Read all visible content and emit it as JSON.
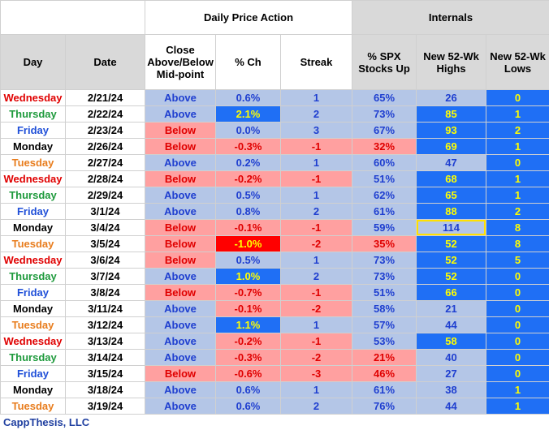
{
  "header": {
    "groups": [
      "Daily Price Action",
      "Internals"
    ],
    "columns": [
      "Day",
      "Date",
      "Close Above/Below Mid-point",
      "% Ch",
      "Streak",
      "% SPX Stocks Up",
      "New 52-Wk Highs",
      "New 52-Wk Lows"
    ]
  },
  "table": {
    "rows": [
      [
        "Wednesday",
        "2/21/24",
        "Above",
        "0.6%",
        "1",
        "65%",
        "26",
        "0"
      ],
      [
        "Thursday",
        "2/22/24",
        "Above",
        "2.1%",
        "2",
        "73%",
        "85",
        "1"
      ],
      [
        "Friday",
        "2/23/24",
        "Below",
        "0.0%",
        "3",
        "67%",
        "93",
        "2"
      ],
      [
        "Monday",
        "2/26/24",
        "Below",
        "-0.3%",
        "-1",
        "32%",
        "69",
        "1"
      ],
      [
        "Tuesday",
        "2/27/24",
        "Above",
        "0.2%",
        "1",
        "60%",
        "47",
        "0"
      ],
      [
        "Wednesday",
        "2/28/24",
        "Below",
        "-0.2%",
        "-1",
        "51%",
        "68",
        "1"
      ],
      [
        "Thursday",
        "2/29/24",
        "Above",
        "0.5%",
        "1",
        "62%",
        "65",
        "1"
      ],
      [
        "Friday",
        "3/1/24",
        "Above",
        "0.8%",
        "2",
        "61%",
        "88",
        "2"
      ],
      [
        "Monday",
        "3/4/24",
        "Below",
        "-0.1%",
        "-1",
        "59%",
        "114",
        "8"
      ],
      [
        "Tuesday",
        "3/5/24",
        "Below",
        "-1.0%",
        "-2",
        "35%",
        "52",
        "8"
      ],
      [
        "Wednesday",
        "3/6/24",
        "Below",
        "0.5%",
        "1",
        "73%",
        "52",
        "5"
      ],
      [
        "Thursday",
        "3/7/24",
        "Above",
        "1.0%",
        "2",
        "73%",
        "52",
        "0"
      ],
      [
        "Friday",
        "3/8/24",
        "Below",
        "-0.7%",
        "-1",
        "51%",
        "66",
        "0"
      ],
      [
        "Monday",
        "3/11/24",
        "Above",
        "-0.1%",
        "-2",
        "58%",
        "21",
        "0"
      ],
      [
        "Tuesday",
        "3/12/24",
        "Above",
        "1.1%",
        "1",
        "57%",
        "44",
        "0"
      ],
      [
        "Wednesday",
        "3/13/24",
        "Above",
        "-0.2%",
        "-1",
        "53%",
        "58",
        "0"
      ],
      [
        "Thursday",
        "3/14/24",
        "Above",
        "-0.3%",
        "-2",
        "21%",
        "40",
        "0"
      ],
      [
        "Friday",
        "3/15/24",
        "Below",
        "-0.6%",
        "-3",
        "46%",
        "27",
        "0"
      ],
      [
        "Monday",
        "3/18/24",
        "Above",
        "0.6%",
        "1",
        "61%",
        "38",
        "1"
      ],
      [
        "Tuesday",
        "3/19/24",
        "Above",
        "0.6%",
        "2",
        "76%",
        "44",
        "1"
      ]
    ],
    "day_colors": {
      "Monday": "#000000",
      "Tuesday": "#e87d1e",
      "Wednesday": "#e00000",
      "Thursday": "#1e9a3c",
      "Friday": "#1f4fd8"
    },
    "fills": [
      [
        "#b4c6e7",
        "#b4c6e7",
        "#b4c6e7",
        "#b4c6e7",
        "#b4c6e7",
        "#1f6ff5"
      ],
      [
        "#b4c6e7",
        "#1f6ff5",
        "#b4c6e7",
        "#b4c6e7",
        "#1f6ff5",
        "#1f6ff5"
      ],
      [
        "#ffa0a0",
        "#b4c6e7",
        "#b4c6e7",
        "#b4c6e7",
        "#1f6ff5",
        "#1f6ff5"
      ],
      [
        "#ffa0a0",
        "#ffa0a0",
        "#ffa0a0",
        "#ffa0a0",
        "#1f6ff5",
        "#1f6ff5"
      ],
      [
        "#b4c6e7",
        "#b4c6e7",
        "#b4c6e7",
        "#b4c6e7",
        "#b4c6e7",
        "#1f6ff5"
      ],
      [
        "#ffa0a0",
        "#ffa0a0",
        "#ffa0a0",
        "#b4c6e7",
        "#1f6ff5",
        "#1f6ff5"
      ],
      [
        "#b4c6e7",
        "#b4c6e7",
        "#b4c6e7",
        "#b4c6e7",
        "#1f6ff5",
        "#1f6ff5"
      ],
      [
        "#b4c6e7",
        "#b4c6e7",
        "#b4c6e7",
        "#b4c6e7",
        "#1f6ff5",
        "#1f6ff5"
      ],
      [
        "#ffa0a0",
        "#ffa0a0",
        "#ffa0a0",
        "#b4c6e7",
        "#b4c6e7",
        "#1f6ff5"
      ],
      [
        "#ffa0a0",
        "#ff0000",
        "#ffa0a0",
        "#ffa0a0",
        "#1f6ff5",
        "#1f6ff5"
      ],
      [
        "#ffa0a0",
        "#b4c6e7",
        "#b4c6e7",
        "#b4c6e7",
        "#1f6ff5",
        "#1f6ff5"
      ],
      [
        "#b4c6e7",
        "#1f6ff5",
        "#b4c6e7",
        "#b4c6e7",
        "#1f6ff5",
        "#1f6ff5"
      ],
      [
        "#ffa0a0",
        "#ffa0a0",
        "#ffa0a0",
        "#b4c6e7",
        "#1f6ff5",
        "#1f6ff5"
      ],
      [
        "#b4c6e7",
        "#ffa0a0",
        "#ffa0a0",
        "#b4c6e7",
        "#b4c6e7",
        "#1f6ff5"
      ],
      [
        "#b4c6e7",
        "#1f6ff5",
        "#b4c6e7",
        "#b4c6e7",
        "#b4c6e7",
        "#1f6ff5"
      ],
      [
        "#b4c6e7",
        "#ffa0a0",
        "#ffa0a0",
        "#b4c6e7",
        "#1f6ff5",
        "#1f6ff5"
      ],
      [
        "#b4c6e7",
        "#ffa0a0",
        "#ffa0a0",
        "#ffa0a0",
        "#b4c6e7",
        "#1f6ff5"
      ],
      [
        "#ffa0a0",
        "#ffa0a0",
        "#ffa0a0",
        "#ffa0a0",
        "#b4c6e7",
        "#1f6ff5"
      ],
      [
        "#b4c6e7",
        "#b4c6e7",
        "#b4c6e7",
        "#b4c6e7",
        "#b4c6e7",
        "#1f6ff5"
      ],
      [
        "#b4c6e7",
        "#b4c6e7",
        "#b4c6e7",
        "#b4c6e7",
        "#b4c6e7",
        "#1f6ff5"
      ]
    ],
    "text_colors": {
      "#b4c6e7": "#1f3fd0",
      "#ffa0a0": "#e00000",
      "#1f6ff5": "#ffff00",
      "#ff0000": "#ffff00"
    },
    "outlined_cells": [
      [
        8,
        6
      ]
    ],
    "outline_color": "#ffe000"
  },
  "footer": "CappThesis, LLC"
}
